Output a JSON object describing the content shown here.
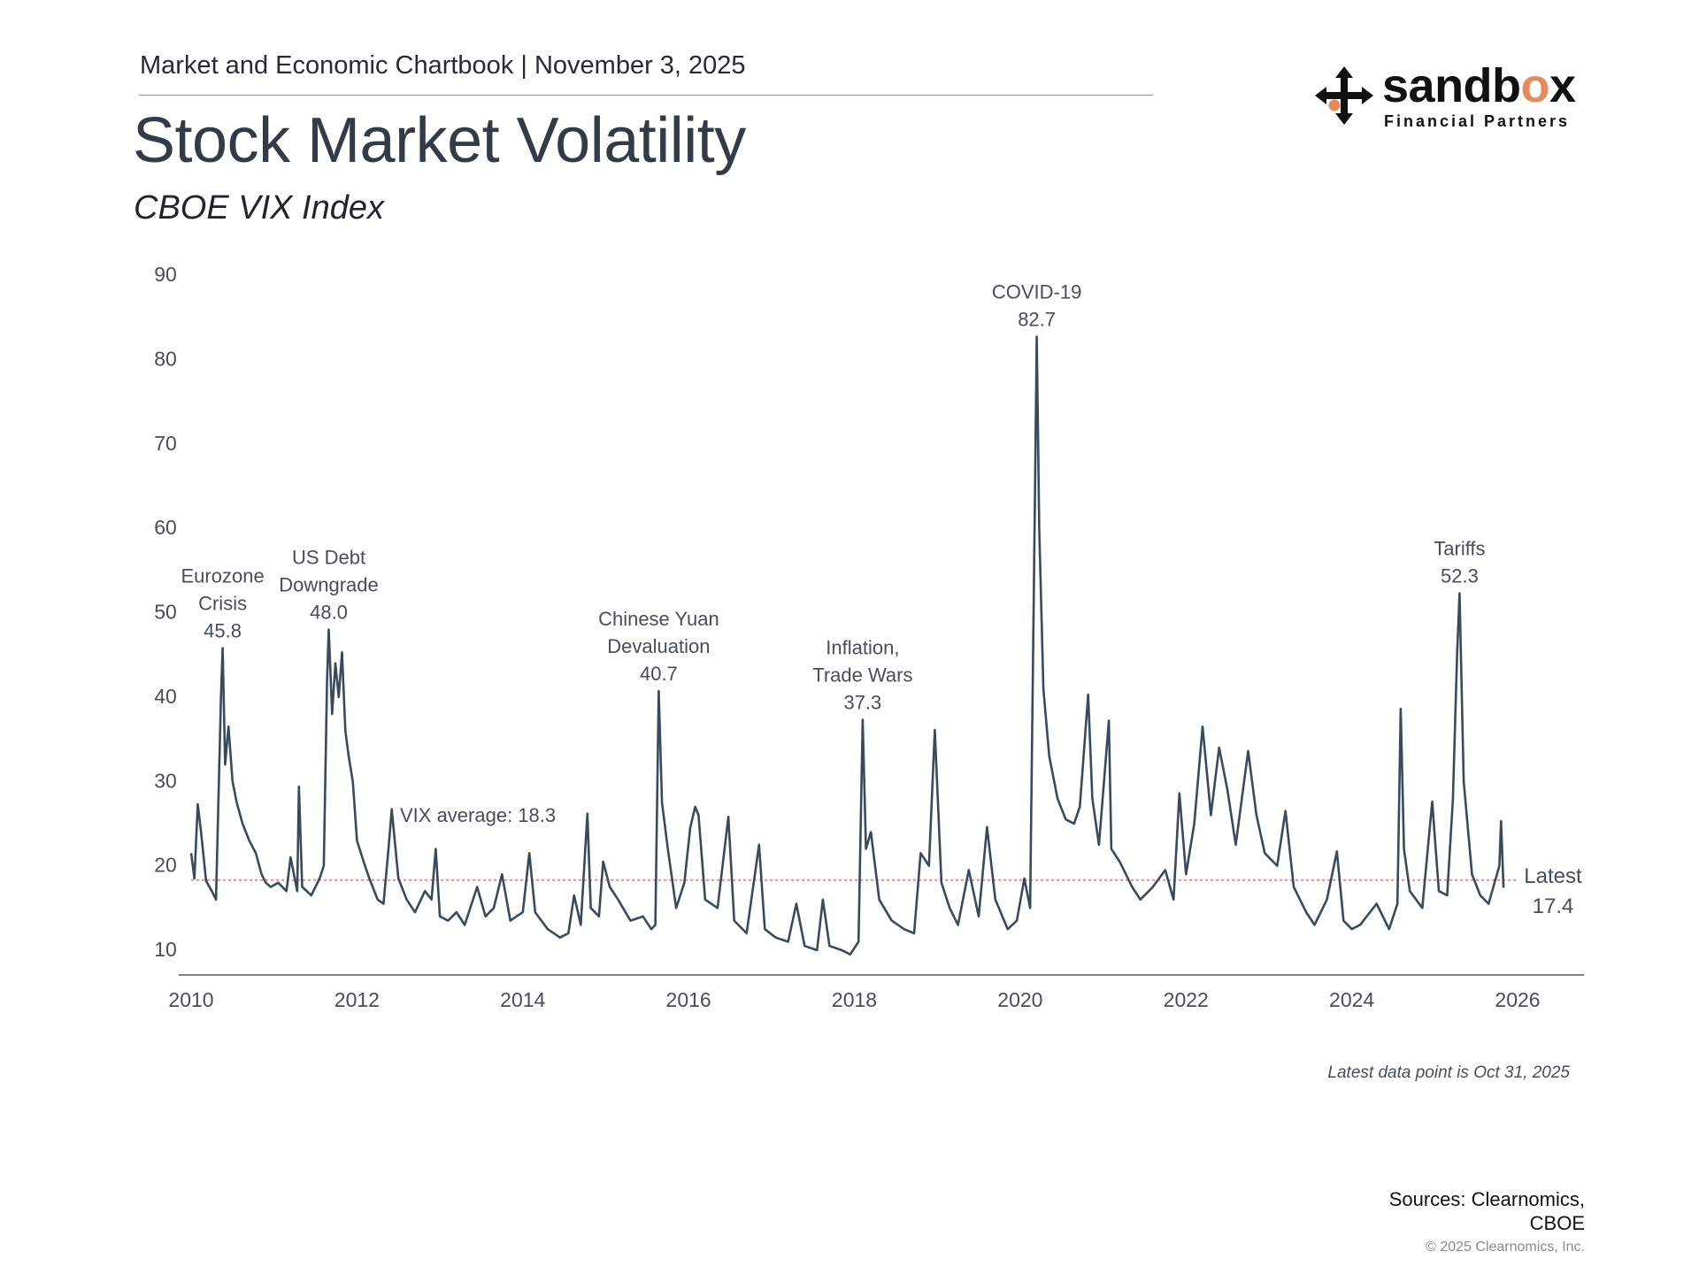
{
  "header": {
    "chartbook": "Market and Economic Chartbook | November 3, 2025",
    "title": "Stock Market Volatility",
    "subtitle": "CBOE VIX Index"
  },
  "logo": {
    "word_main": "sandb",
    "word_accent": "o",
    "word_end": "x",
    "tagline": "Financial Partners",
    "accent_color": "#e58c5e"
  },
  "chart_data": {
    "type": "line",
    "title": "Stock Market Volatility",
    "subtitle": "CBOE VIX Index",
    "xlabel": "",
    "ylabel": "",
    "xlim": [
      2010,
      2026.75
    ],
    "ylim": [
      7,
      90
    ],
    "y_ticks": [
      90,
      80,
      70,
      60,
      50,
      40,
      30,
      20,
      10
    ],
    "x_ticks": [
      2010,
      2012,
      2014,
      2016,
      2018,
      2020,
      2022,
      2024,
      2026
    ],
    "grid": false,
    "line_color": "#384b5c",
    "reference_line": {
      "label": "VIX average: 18.3",
      "value": 18.3,
      "color": "#d9736a"
    },
    "series": [
      {
        "name": "VIX",
        "points": [
          [
            2010.0,
            21.5
          ],
          [
            2010.04,
            18.5
          ],
          [
            2010.08,
            27.3
          ],
          [
            2010.12,
            24.0
          ],
          [
            2010.18,
            18.2
          ],
          [
            2010.25,
            17.0
          ],
          [
            2010.3,
            16.0
          ],
          [
            2010.36,
            40.0
          ],
          [
            2010.38,
            45.8
          ],
          [
            2010.41,
            32.0
          ],
          [
            2010.45,
            36.5
          ],
          [
            2010.5,
            30.0
          ],
          [
            2010.55,
            27.5
          ],
          [
            2010.62,
            25.0
          ],
          [
            2010.7,
            23.0
          ],
          [
            2010.78,
            21.5
          ],
          [
            2010.85,
            19.0
          ],
          [
            2010.9,
            18.0
          ],
          [
            2010.96,
            17.5
          ],
          [
            2011.05,
            18.0
          ],
          [
            2011.15,
            17.0
          ],
          [
            2011.2,
            21.0
          ],
          [
            2011.28,
            17.0
          ],
          [
            2011.3,
            29.4
          ],
          [
            2011.34,
            17.5
          ],
          [
            2011.45,
            16.5
          ],
          [
            2011.55,
            18.5
          ],
          [
            2011.6,
            20.0
          ],
          [
            2011.64,
            42.0
          ],
          [
            2011.66,
            48.0
          ],
          [
            2011.7,
            38.0
          ],
          [
            2011.74,
            44.0
          ],
          [
            2011.78,
            40.0
          ],
          [
            2011.82,
            45.3
          ],
          [
            2011.86,
            36.0
          ],
          [
            2011.9,
            33.0
          ],
          [
            2011.95,
            30.0
          ],
          [
            2012.0,
            23.0
          ],
          [
            2012.08,
            20.5
          ],
          [
            2012.15,
            18.5
          ],
          [
            2012.25,
            16.0
          ],
          [
            2012.32,
            15.5
          ],
          [
            2012.38,
            22.0
          ],
          [
            2012.42,
            26.7
          ],
          [
            2012.5,
            18.5
          ],
          [
            2012.6,
            16.0
          ],
          [
            2012.7,
            14.5
          ],
          [
            2012.82,
            17.0
          ],
          [
            2012.9,
            16.0
          ],
          [
            2012.95,
            22.0
          ],
          [
            2013.0,
            14.0
          ],
          [
            2013.1,
            13.5
          ],
          [
            2013.2,
            14.5
          ],
          [
            2013.3,
            13.0
          ],
          [
            2013.45,
            17.5
          ],
          [
            2013.55,
            14.0
          ],
          [
            2013.65,
            15.0
          ],
          [
            2013.75,
            19.0
          ],
          [
            2013.85,
            13.5
          ],
          [
            2014.0,
            14.5
          ],
          [
            2014.08,
            21.5
          ],
          [
            2014.15,
            14.5
          ],
          [
            2014.3,
            12.5
          ],
          [
            2014.45,
            11.5
          ],
          [
            2014.55,
            12.0
          ],
          [
            2014.62,
            16.5
          ],
          [
            2014.7,
            13.0
          ],
          [
            2014.78,
            26.2
          ],
          [
            2014.82,
            15.0
          ],
          [
            2014.92,
            14.0
          ],
          [
            2014.97,
            20.5
          ],
          [
            2015.05,
            17.5
          ],
          [
            2015.15,
            16.0
          ],
          [
            2015.3,
            13.5
          ],
          [
            2015.45,
            14.0
          ],
          [
            2015.55,
            12.5
          ],
          [
            2015.6,
            13.0
          ],
          [
            2015.64,
            40.7
          ],
          [
            2015.68,
            27.5
          ],
          [
            2015.75,
            22.0
          ],
          [
            2015.85,
            15.0
          ],
          [
            2015.95,
            18.0
          ],
          [
            2016.02,
            24.5
          ],
          [
            2016.08,
            27.0
          ],
          [
            2016.12,
            26.0
          ],
          [
            2016.2,
            16.0
          ],
          [
            2016.35,
            15.0
          ],
          [
            2016.48,
            25.8
          ],
          [
            2016.55,
            13.5
          ],
          [
            2016.7,
            12.0
          ],
          [
            2016.85,
            22.5
          ],
          [
            2016.92,
            12.5
          ],
          [
            2017.05,
            11.5
          ],
          [
            2017.2,
            11.0
          ],
          [
            2017.3,
            15.5
          ],
          [
            2017.4,
            10.5
          ],
          [
            2017.55,
            10.0
          ],
          [
            2017.62,
            16.0
          ],
          [
            2017.7,
            10.5
          ],
          [
            2017.85,
            10.0
          ],
          [
            2017.95,
            9.5
          ],
          [
            2018.05,
            11.0
          ],
          [
            2018.1,
            37.3
          ],
          [
            2018.14,
            22.0
          ],
          [
            2018.2,
            24.0
          ],
          [
            2018.3,
            16.0
          ],
          [
            2018.45,
            13.5
          ],
          [
            2018.6,
            12.5
          ],
          [
            2018.72,
            12.0
          ],
          [
            2018.8,
            21.5
          ],
          [
            2018.9,
            20.0
          ],
          [
            2018.97,
            36.1
          ],
          [
            2019.05,
            18.0
          ],
          [
            2019.15,
            15.0
          ],
          [
            2019.25,
            13.0
          ],
          [
            2019.38,
            19.5
          ],
          [
            2019.5,
            14.0
          ],
          [
            2019.6,
            24.6
          ],
          [
            2019.7,
            16.0
          ],
          [
            2019.85,
            12.5
          ],
          [
            2019.96,
            13.5
          ],
          [
            2020.05,
            18.5
          ],
          [
            2020.12,
            15.0
          ],
          [
            2020.15,
            40.0
          ],
          [
            2020.18,
            65.0
          ],
          [
            2020.2,
            82.7
          ],
          [
            2020.23,
            60.0
          ],
          [
            2020.28,
            41.0
          ],
          [
            2020.35,
            33.0
          ],
          [
            2020.45,
            28.0
          ],
          [
            2020.55,
            25.5
          ],
          [
            2020.65,
            25.0
          ],
          [
            2020.72,
            27.0
          ],
          [
            2020.82,
            40.3
          ],
          [
            2020.87,
            28.0
          ],
          [
            2020.95,
            22.5
          ],
          [
            2021.07,
            37.2
          ],
          [
            2021.1,
            22.0
          ],
          [
            2021.2,
            20.5
          ],
          [
            2021.35,
            17.5
          ],
          [
            2021.45,
            16.0
          ],
          [
            2021.6,
            17.5
          ],
          [
            2021.75,
            19.5
          ],
          [
            2021.85,
            16.0
          ],
          [
            2021.92,
            28.6
          ],
          [
            2022.0,
            19.0
          ],
          [
            2022.1,
            25.0
          ],
          [
            2022.2,
            36.5
          ],
          [
            2022.3,
            26.0
          ],
          [
            2022.4,
            34.0
          ],
          [
            2022.5,
            29.0
          ],
          [
            2022.6,
            22.5
          ],
          [
            2022.75,
            33.6
          ],
          [
            2022.85,
            26.0
          ],
          [
            2022.95,
            21.5
          ],
          [
            2023.1,
            20.0
          ],
          [
            2023.2,
            26.5
          ],
          [
            2023.3,
            17.5
          ],
          [
            2023.45,
            14.5
          ],
          [
            2023.55,
            13.0
          ],
          [
            2023.7,
            16.0
          ],
          [
            2023.82,
            21.7
          ],
          [
            2023.9,
            13.5
          ],
          [
            2024.0,
            12.5
          ],
          [
            2024.1,
            13.0
          ],
          [
            2024.3,
            15.5
          ],
          [
            2024.45,
            12.5
          ],
          [
            2024.55,
            15.5
          ],
          [
            2024.59,
            38.6
          ],
          [
            2024.63,
            22.0
          ],
          [
            2024.7,
            17.0
          ],
          [
            2024.85,
            15.0
          ],
          [
            2024.97,
            27.6
          ],
          [
            2025.05,
            17.0
          ],
          [
            2025.15,
            16.5
          ],
          [
            2025.22,
            27.9
          ],
          [
            2025.27,
            45.0
          ],
          [
            2025.3,
            52.3
          ],
          [
            2025.35,
            30.0
          ],
          [
            2025.45,
            19.0
          ],
          [
            2025.55,
            16.5
          ],
          [
            2025.65,
            15.5
          ],
          [
            2025.78,
            20.0
          ],
          [
            2025.8,
            25.3
          ],
          [
            2025.83,
            17.4
          ]
        ]
      }
    ],
    "annotations": [
      {
        "lines": [
          "Eurozone",
          "Crisis",
          "45.8"
        ],
        "x": 2010.38,
        "y": 45.8
      },
      {
        "lines": [
          "US Debt",
          "Downgrade",
          "48.0"
        ],
        "x": 2011.66,
        "y": 48.0
      },
      {
        "lines": [
          "Chinese Yuan",
          "Devaluation",
          "40.7"
        ],
        "x": 2015.64,
        "y": 40.7
      },
      {
        "lines": [
          "Inflation,",
          "Trade Wars",
          "37.3"
        ],
        "x": 2018.1,
        "y": 37.3
      },
      {
        "lines": [
          "COVID-19",
          "82.7"
        ],
        "x": 2020.2,
        "y": 82.7
      },
      {
        "lines": [
          "Tariffs",
          "52.3"
        ],
        "x": 2025.3,
        "y": 52.3
      }
    ],
    "latest_label": {
      "lines": [
        "Latest",
        "17.4"
      ],
      "value": 17.4
    },
    "footnote": "Latest data point is Oct 31, 2025"
  },
  "footer": {
    "sources_line1": "Sources: Clearnomics,",
    "sources_line2": "CBOE",
    "copyright": "© 2025 Clearnomics, Inc."
  }
}
